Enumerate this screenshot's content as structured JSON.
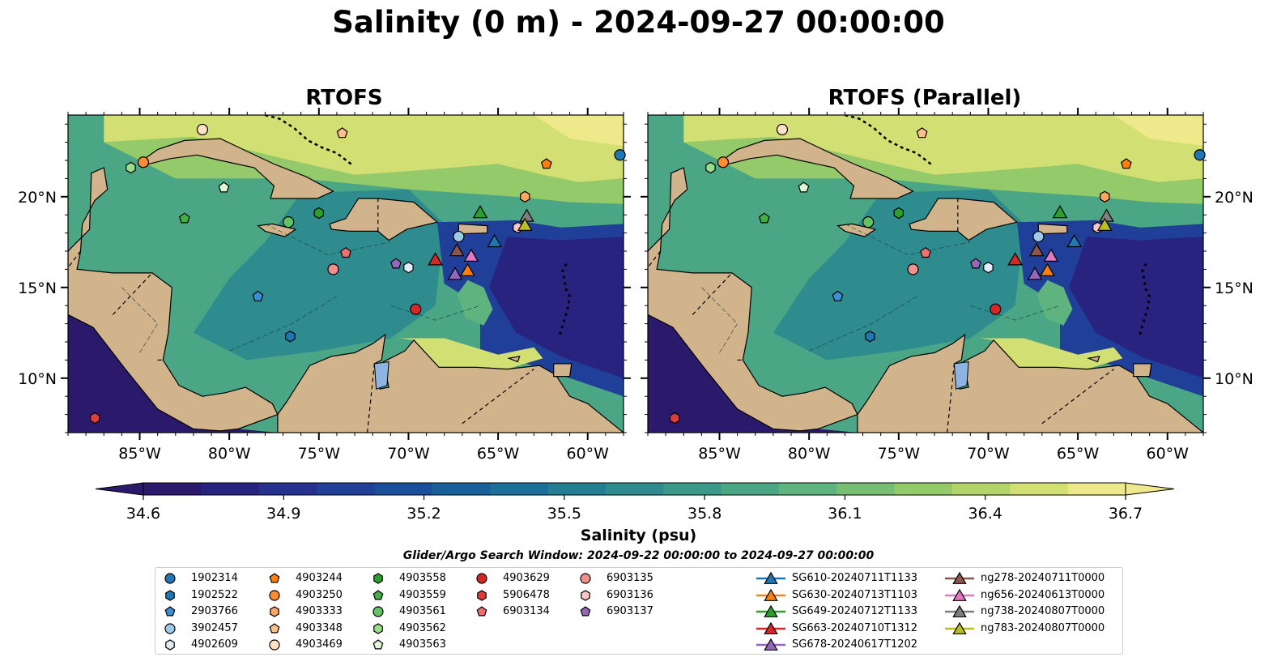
{
  "title": "Salinity (0 m) - 2024-09-27 00:00:00",
  "panels": [
    {
      "title": "RTOFS"
    },
    {
      "title": "RTOFS (Parallel)"
    }
  ],
  "axes": {
    "lon_ticks": [
      "85°W",
      "80°W",
      "75°W",
      "70°W",
      "65°W",
      "60°W"
    ],
    "lat_ticks": [
      "20°N",
      "15°N",
      "10°N"
    ],
    "lon_range": [
      -89,
      -58
    ],
    "lat_range": [
      7,
      24.5
    ]
  },
  "colorbar": {
    "label": "Salinity (psu)",
    "ticks": [
      "34.6",
      "34.9",
      "35.2",
      "35.5",
      "35.8",
      "36.1",
      "36.4",
      "36.7"
    ],
    "range": [
      34.6,
      36.7
    ],
    "colors": [
      "#2b1a6b",
      "#28237f",
      "#25308f",
      "#1f3f98",
      "#1b4f9b",
      "#19609b",
      "#1c6f98",
      "#247e93",
      "#2e8c8e",
      "#3b998a",
      "#4aa685",
      "#5eb37e",
      "#78bf74",
      "#95ca6a",
      "#b3d468",
      "#d2df72",
      "#eee98a"
    ]
  },
  "search_window": "Glider/Argo Search Window: 2024-09-22 00:00:00 to 2024-09-27 00:00:00",
  "legend": [
    {
      "label": "1902314",
      "marker": "circle",
      "color": "#1f77b4"
    },
    {
      "label": "1902522",
      "marker": "hexagon",
      "color": "#1f77b4"
    },
    {
      "label": "2903766",
      "marker": "pentagon",
      "color": "#3b8fd4"
    },
    {
      "label": "3902457",
      "marker": "circle",
      "color": "#9ecae9"
    },
    {
      "label": "4902609",
      "marker": "hexagon",
      "color": "#dfeefb"
    },
    {
      "label": "4903244",
      "marker": "pentagon",
      "color": "#ff7f0e"
    },
    {
      "label": "4903250",
      "marker": "circle",
      "color": "#ff8c2e"
    },
    {
      "label": "4903333",
      "marker": "hexagon",
      "color": "#ffa75e"
    },
    {
      "label": "4903348",
      "marker": "pentagon",
      "color": "#ffc08a"
    },
    {
      "label": "4903469",
      "marker": "circle",
      "color": "#ffe2c4"
    },
    {
      "label": "4903558",
      "marker": "hexagon",
      "color": "#2ca02c"
    },
    {
      "label": "4903559",
      "marker": "pentagon",
      "color": "#42b042"
    },
    {
      "label": "4903561",
      "marker": "circle",
      "color": "#62c462"
    },
    {
      "label": "4903562",
      "marker": "hexagon",
      "color": "#98df8a"
    },
    {
      "label": "4903563",
      "marker": "pentagon",
      "color": "#dcf7d6"
    },
    {
      "label": "4903629",
      "marker": "circle",
      "color": "#d62728"
    },
    {
      "label": "5906478",
      "marker": "hexagon",
      "color": "#e03c3c"
    },
    {
      "label": "6903134",
      "marker": "pentagon",
      "color": "#f07070"
    },
    {
      "label": "6903135",
      "marker": "circle",
      "color": "#f28f8f"
    },
    {
      "label": "6903136",
      "marker": "hexagon",
      "color": "#f9c5c5"
    },
    {
      "label": "6903137",
      "marker": "pentagon",
      "color": "#9467bd"
    },
    {
      "label": "SG610-20240711T1133",
      "marker": "triangle",
      "color": "#1f77b4"
    },
    {
      "label": "SG630-20240713T1103",
      "marker": "triangle",
      "color": "#ff7f0e"
    },
    {
      "label": "SG649-20240712T1133",
      "marker": "triangle",
      "color": "#2ca02c"
    },
    {
      "label": "SG663-20240710T1312",
      "marker": "triangle",
      "color": "#d62728"
    },
    {
      "label": "SG678-20240617T1202",
      "marker": "triangle",
      "color": "#9467bd"
    },
    {
      "label": "ng278-20240711T0000",
      "marker": "triangle",
      "color": "#8c564b"
    },
    {
      "label": "ng656-20240613T0000",
      "marker": "triangle",
      "color": "#e377c2"
    },
    {
      "label": "ng738-20240807T0000",
      "marker": "triangle",
      "color": "#7f7f7f"
    },
    {
      "label": "ng783-20240807T0000",
      "marker": "triangle",
      "color": "#bcbd22"
    }
  ],
  "observations": [
    {
      "id": "1902314",
      "lon": -58.2,
      "lat": 22.3
    },
    {
      "id": "1902522",
      "lon": -76.6,
      "lat": 12.3
    },
    {
      "id": "2903766",
      "lon": -78.4,
      "lat": 14.5
    },
    {
      "id": "3902457",
      "lon": -67.2,
      "lat": 17.8
    },
    {
      "id": "4902609",
      "lon": -70.0,
      "lat": 16.1
    },
    {
      "id": "4903244",
      "lon": -62.3,
      "lat": 21.8
    },
    {
      "id": "4903250",
      "lon": -84.8,
      "lat": 21.9
    },
    {
      "id": "4903333",
      "lon": -63.5,
      "lat": 20.0
    },
    {
      "id": "4903348",
      "lon": -73.7,
      "lat": 23.5
    },
    {
      "id": "4903469",
      "lon": -81.5,
      "lat": 23.7
    },
    {
      "id": "4903558",
      "lon": -75.0,
      "lat": 19.1
    },
    {
      "id": "4903559",
      "lon": -82.5,
      "lat": 18.8
    },
    {
      "id": "4903561",
      "lon": -76.7,
      "lat": 18.6
    },
    {
      "id": "4903562",
      "lon": -85.5,
      "lat": 21.6
    },
    {
      "id": "4903563",
      "lon": -80.3,
      "lat": 20.5
    },
    {
      "id": "4903629",
      "lon": -69.6,
      "lat": 13.8
    },
    {
      "id": "5906478",
      "lon": -87.5,
      "lat": 7.8
    },
    {
      "id": "6903134",
      "lon": -73.5,
      "lat": 16.9
    },
    {
      "id": "6903135",
      "lon": -74.2,
      "lat": 16.0
    },
    {
      "id": "6903136",
      "lon": -63.9,
      "lat": 18.3
    },
    {
      "id": "6903137",
      "lon": -70.7,
      "lat": 16.3
    },
    {
      "id": "SG610-20240711T1133",
      "lon": -65.2,
      "lat": 17.5
    },
    {
      "id": "SG630-20240713T1103",
      "lon": -66.7,
      "lat": 15.9
    },
    {
      "id": "SG649-20240712T1133",
      "lon": -66.0,
      "lat": 19.1
    },
    {
      "id": "SG663-20240710T1312",
      "lon": -68.5,
      "lat": 16.5
    },
    {
      "id": "SG678-20240617T1202",
      "lon": -67.4,
      "lat": 15.7
    },
    {
      "id": "ng278-20240711T0000",
      "lon": -67.3,
      "lat": 17.0
    },
    {
      "id": "ng656-20240613T0000",
      "lon": -66.5,
      "lat": 16.7
    },
    {
      "id": "ng738-20240807T0000",
      "lon": -63.4,
      "lat": 18.9
    },
    {
      "id": "ng783-20240807T0000",
      "lon": -63.5,
      "lat": 18.4
    }
  ]
}
